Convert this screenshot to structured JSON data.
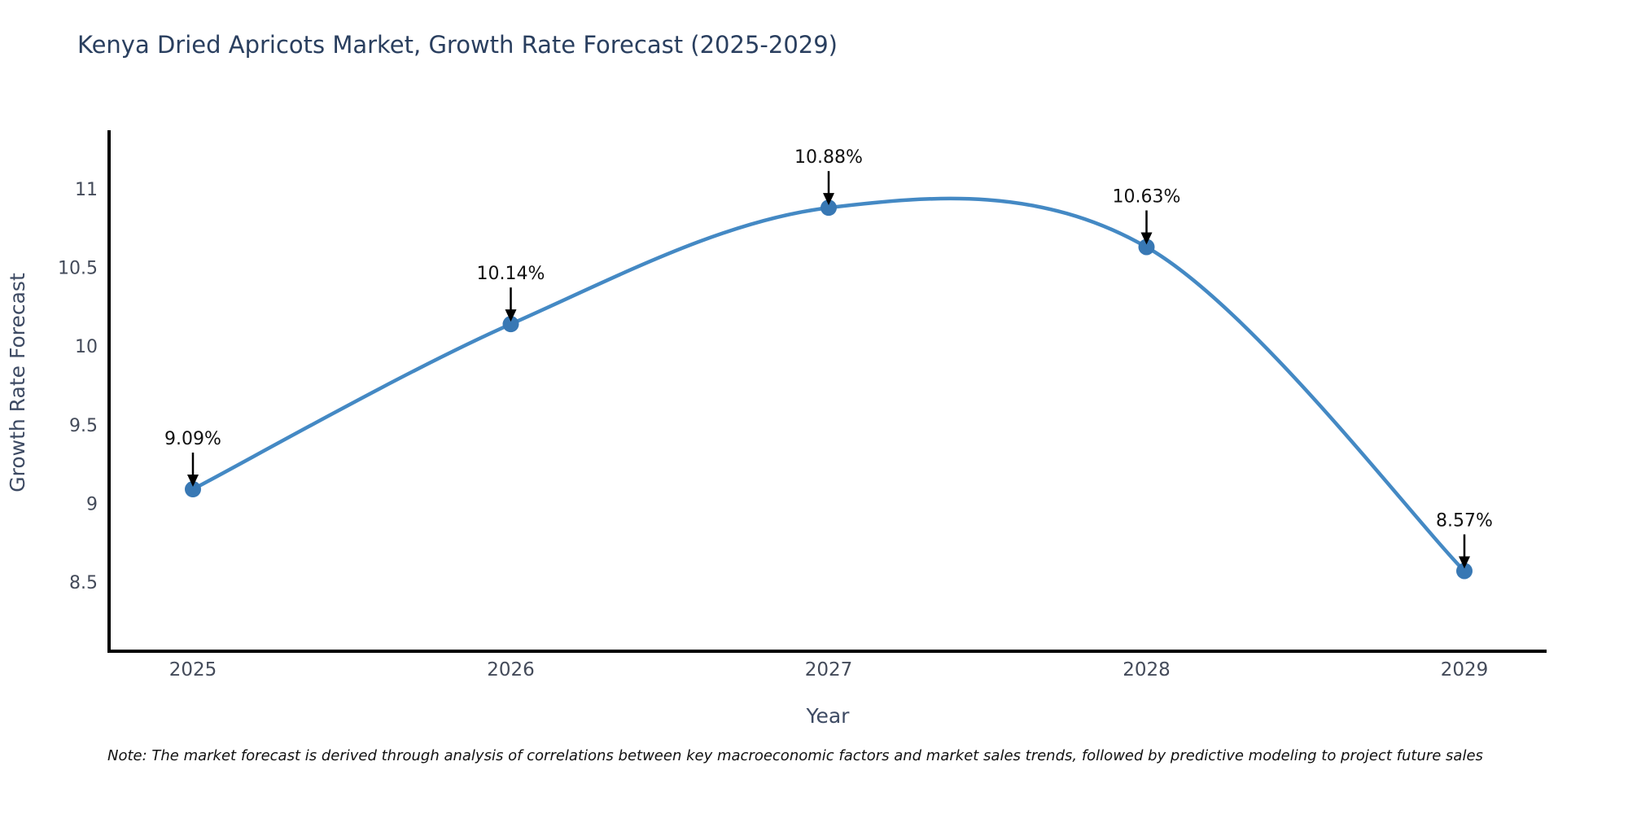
{
  "chart": {
    "title": "Kenya Dried Apricots Market, Growth Rate Forecast (2025-2029)",
    "xlabel": "Year",
    "ylabel": "Growth Rate Forecast",
    "note": "Note: The market forecast is derived through analysis of correlations between key macroeconomic factors and market sales trends, followed by predictive modeling to project future sales"
  },
  "chart_data": {
    "type": "line",
    "title": "Kenya Dried Apricots Market, Growth Rate Forecast (2025-2029)",
    "xlabel": "Year",
    "ylabel": "Growth Rate Forecast",
    "categories": [
      "2025",
      "2026",
      "2027",
      "2028",
      "2029"
    ],
    "values": [
      9.09,
      10.14,
      10.88,
      10.63,
      8.57
    ],
    "point_labels": [
      "9.09%",
      "10.14%",
      "10.88%",
      "10.63%",
      "8.57%"
    ],
    "yticks": [
      8.5,
      9,
      9.5,
      10,
      10.5,
      11
    ],
    "ylim": [
      8.06,
      11.37
    ],
    "line_shape": "spline",
    "grid": false,
    "legend": "none",
    "colors": {
      "line": "#4489c4",
      "marker": "#3878b4",
      "title": "#2a3f5f",
      "axis_title": "#3d4a63",
      "tick": "#444b5a",
      "annotation": "#111111",
      "spine": "#000000",
      "background": "#ffffff"
    }
  }
}
